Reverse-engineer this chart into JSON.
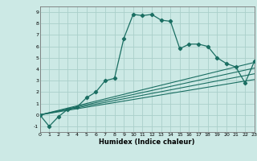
{
  "title": "",
  "xlabel": "Humidex (Indice chaleur)",
  "xlim": [
    0,
    23
  ],
  "ylim": [
    -1.5,
    9.5
  ],
  "xticks": [
    0,
    1,
    2,
    3,
    4,
    5,
    6,
    7,
    8,
    9,
    10,
    11,
    12,
    13,
    14,
    15,
    16,
    17,
    18,
    19,
    20,
    21,
    22,
    23
  ],
  "yticks": [
    -1,
    0,
    1,
    2,
    3,
    4,
    5,
    6,
    7,
    8,
    9
  ],
  "bg_color": "#cce9e5",
  "grid_color": "#aacfca",
  "line_color": "#1a6e62",
  "main_curve_x": [
    0,
    1,
    2,
    3,
    4,
    5,
    6,
    7,
    8,
    9,
    10,
    11,
    12,
    13,
    14,
    15,
    16,
    17,
    18,
    19,
    20,
    21,
    22,
    23
  ],
  "main_curve_y": [
    0.0,
    -1.0,
    -0.15,
    0.5,
    0.7,
    1.5,
    2.0,
    3.0,
    3.2,
    6.7,
    8.8,
    8.7,
    8.8,
    8.3,
    8.2,
    5.8,
    6.2,
    6.2,
    6.0,
    5.0,
    4.5,
    4.2,
    2.8,
    4.7
  ],
  "linear_lines": [
    {
      "x": [
        0,
        23
      ],
      "y": [
        0.0,
        4.6
      ]
    },
    {
      "x": [
        0,
        23
      ],
      "y": [
        0.0,
        4.1
      ]
    },
    {
      "x": [
        0,
        23
      ],
      "y": [
        0.0,
        3.6
      ]
    },
    {
      "x": [
        0,
        23
      ],
      "y": [
        0.0,
        3.1
      ]
    }
  ]
}
